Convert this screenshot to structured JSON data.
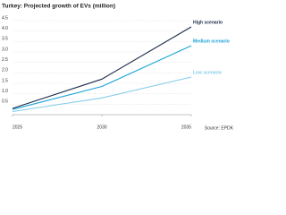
{
  "chart_data": {
    "type": "line",
    "title": "Turkey: Projected growth of EVs (million)",
    "source": "Source: EPDK",
    "x": [
      2025,
      2030,
      2035
    ],
    "xlim": [
      2025,
      2035
    ],
    "xticks": [
      2025,
      2030,
      2035
    ],
    "ylim": [
      0,
      4.5
    ],
    "yticks": [
      0.5,
      {
        "value": 1,
        "label": "1.0"
      },
      1.5,
      {
        "value": 2,
        "label": "2.0"
      },
      2.5,
      {
        "value": 3,
        "label": "3.0"
      },
      3.5,
      {
        "value": 4,
        "label": "4.0"
      },
      4.5
    ],
    "grid": true,
    "series": [
      {
        "name": "High scenario",
        "color": "#1c2b4b",
        "values": [
          0.3,
          1.7,
          4.2
        ]
      },
      {
        "name": "Medium scenario",
        "color": "#1ba3d6",
        "values": [
          0.25,
          1.35,
          3.3
        ]
      },
      {
        "name": "Low scenario",
        "color": "#86cde9",
        "values": [
          0.15,
          0.8,
          1.8
        ]
      }
    ]
  }
}
